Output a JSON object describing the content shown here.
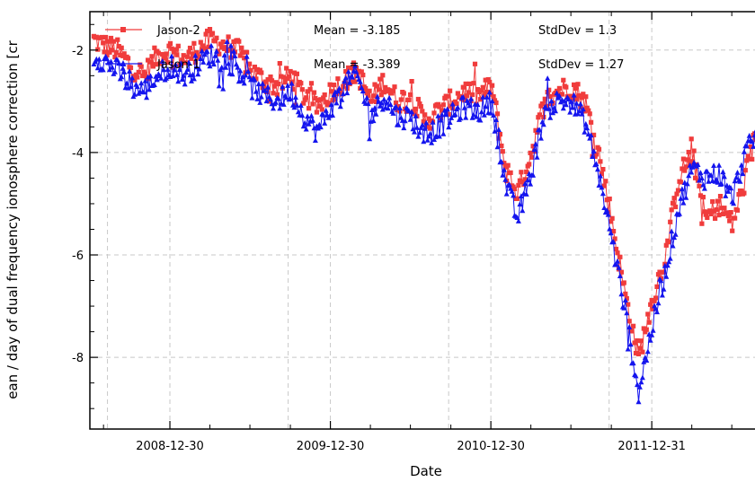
{
  "chart_data": {
    "type": "line",
    "title": "",
    "xlabel": "Date",
    "ylabel": "ean / day of dual frequency ionosphere correction [cr",
    "x_tick_labels": [
      "2008-12-30",
      "2009-12-30",
      "2010-12-30",
      "2011-12-31"
    ],
    "y_ticks": [
      -2,
      -4,
      -6,
      -8
    ],
    "ylim": [
      -9.4,
      -1.25
    ],
    "xlim": [
      "2008-07-01",
      "2012-09-01"
    ],
    "grid": true,
    "legend_position": "top-left",
    "series": [
      {
        "name": "Jason-2",
        "color": "#f03c3c",
        "marker": "square",
        "mean_label": "Mean = -3.185",
        "stddev_label": "StdDev = 1.3",
        "x": [
          "2008-07-10",
          "2008-08-01",
          "2008-09-01",
          "2008-10-01",
          "2008-11-01",
          "2008-12-01",
          "2009-01-01",
          "2009-02-01",
          "2009-03-01",
          "2009-04-01",
          "2009-05-01",
          "2009-06-01",
          "2009-07-01",
          "2009-08-01",
          "2009-09-01",
          "2009-10-01",
          "2009-11-01",
          "2009-12-01",
          "2010-01-01",
          "2010-02-01",
          "2010-03-01",
          "2010-04-01",
          "2010-05-01",
          "2010-06-01",
          "2010-07-01",
          "2010-08-01",
          "2010-09-01",
          "2010-10-01",
          "2010-11-01",
          "2010-12-01",
          "2011-01-01",
          "2011-02-01",
          "2011-03-01",
          "2011-04-01",
          "2011-05-01",
          "2011-06-01",
          "2011-07-01",
          "2011-08-01",
          "2011-09-01",
          "2011-10-01",
          "2011-11-01",
          "2011-12-01",
          "2012-01-01",
          "2012-02-01",
          "2012-03-01",
          "2012-04-01",
          "2012-05-01",
          "2012-06-01",
          "2012-07-01",
          "2012-08-01",
          "2012-09-01"
        ],
        "y": [
          -1.8,
          -1.9,
          -2.0,
          -2.3,
          -2.5,
          -2.1,
          -2.0,
          -2.2,
          -2.0,
          -1.8,
          -1.9,
          -2.0,
          -2.4,
          -2.6,
          -2.7,
          -2.5,
          -2.9,
          -3.1,
          -2.8,
          -2.6,
          -2.4,
          -3.0,
          -2.6,
          -3.0,
          -2.9,
          -3.4,
          -3.2,
          -3.0,
          -2.8,
          -2.9,
          -2.7,
          -4.3,
          -4.8,
          -4.0,
          -3.0,
          -2.8,
          -2.7,
          -3.0,
          -4.0,
          -5.3,
          -6.8,
          -8.0,
          -6.9,
          -6.0,
          -4.5,
          -4.0,
          -5.3,
          -5.0,
          -5.4,
          -4.5,
          -3.3
        ]
      },
      {
        "name": "Jason-1",
        "color": "#1414ee",
        "marker": "triangle",
        "mean_label": "Mean = -3.389",
        "stddev_label": "StdDev = 1.27",
        "x": [
          "2008-07-10",
          "2008-08-01",
          "2008-09-01",
          "2008-10-01",
          "2008-11-01",
          "2008-12-01",
          "2009-01-01",
          "2009-02-01",
          "2009-03-01",
          "2009-04-01",
          "2009-05-01",
          "2009-06-01",
          "2009-07-01",
          "2009-08-01",
          "2009-09-01",
          "2009-10-01",
          "2009-11-01",
          "2009-12-01",
          "2010-01-01",
          "2010-02-01",
          "2010-03-01",
          "2010-04-01",
          "2010-05-01",
          "2010-06-01",
          "2010-07-01",
          "2010-08-01",
          "2010-09-01",
          "2010-10-01",
          "2010-11-01",
          "2010-12-01",
          "2011-01-01",
          "2011-02-01",
          "2011-03-01",
          "2011-04-01",
          "2011-05-01",
          "2011-06-01",
          "2011-07-01",
          "2011-08-01",
          "2011-09-01",
          "2011-10-01",
          "2011-11-01",
          "2011-12-01",
          "2012-01-01",
          "2012-02-01",
          "2012-03-01",
          "2012-04-01",
          "2012-05-01",
          "2012-06-01",
          "2012-07-01",
          "2012-08-01",
          "2012-09-01"
        ],
        "y": [
          -2.1,
          -2.2,
          -2.4,
          -2.7,
          -2.8,
          -2.5,
          -2.3,
          -2.5,
          -2.3,
          -2.1,
          -2.2,
          -2.3,
          -2.7,
          -2.9,
          -3.0,
          -2.8,
          -3.3,
          -3.6,
          -3.1,
          -2.7,
          -2.5,
          -3.3,
          -2.9,
          -3.3,
          -3.3,
          -3.7,
          -3.5,
          -3.3,
          -3.1,
          -3.2,
          -3.0,
          -4.6,
          -5.3,
          -4.4,
          -3.2,
          -3.0,
          -3.0,
          -3.4,
          -4.4,
          -5.7,
          -7.1,
          -8.7,
          -7.4,
          -6.3,
          -5.1,
          -4.3,
          -4.5,
          -4.4,
          -4.9,
          -4.0,
          -3.6
        ]
      }
    ]
  }
}
